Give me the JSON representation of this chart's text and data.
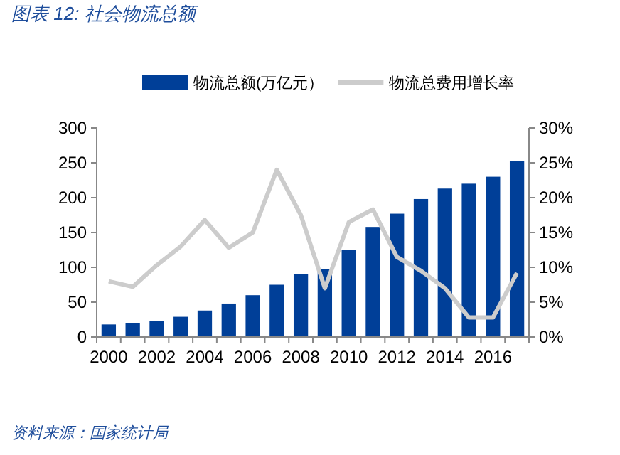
{
  "chart_data": {
    "type": "bar",
    "title": "图表 12:  社会物流总额",
    "annotations": [
      "资料来源：国家统计局"
    ],
    "categories": [
      "2000",
      null,
      "2002",
      null,
      "2004",
      null,
      "2006",
      null,
      "2008",
      null,
      "2010",
      null,
      "2012",
      null,
      "2014",
      null,
      "2016",
      null
    ],
    "series": [
      {
        "name": "物流总额(万亿元）",
        "color": "#003f98",
        "values": [
          18,
          20,
          23,
          29,
          38,
          48,
          60,
          75,
          90,
          97,
          125,
          158,
          177,
          198,
          213,
          220,
          230,
          253
        ]
      },
      {
        "name": "物流总费用增长率",
        "type": "line",
        "axis": "y2",
        "color": "#cccccc",
        "values": [
          8,
          7.2,
          10.3,
          13,
          16.8,
          12.8,
          15,
          24,
          17.5,
          7,
          16.5,
          18.3,
          11.5,
          9.5,
          7,
          2.8,
          2.8,
          9.2
        ]
      }
    ],
    "ylim": [
      0,
      300
    ],
    "yticks": [
      0,
      50,
      100,
      150,
      200,
      250,
      300
    ],
    "y2lim": [
      0,
      30
    ],
    "y2ticks": [
      {
        "value": 0,
        "label": "0%"
      },
      {
        "value": 5,
        "label": "5%"
      },
      {
        "value": 10,
        "label": "10%"
      },
      {
        "value": 15,
        "label": "15%"
      },
      {
        "value": 20,
        "label": "20%"
      },
      {
        "value": 25,
        "label": "25%"
      },
      {
        "value": 30,
        "label": "30%"
      }
    ],
    "legend": "top",
    "grid": false
  }
}
